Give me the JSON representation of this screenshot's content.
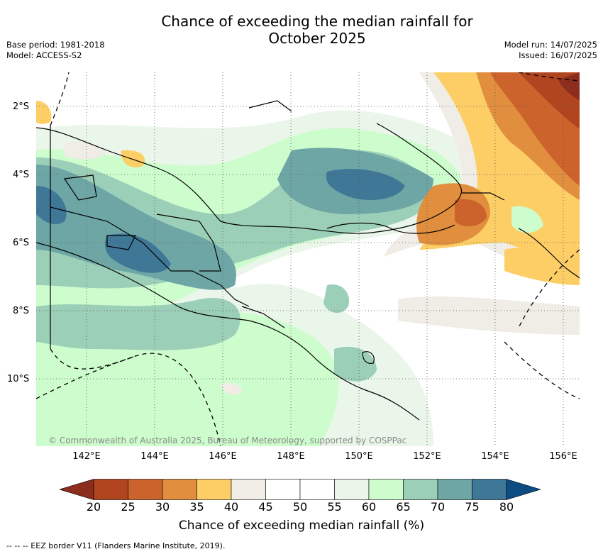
{
  "header": {
    "title": "Chance of exceeding the median rainfall for\nOctober 2025",
    "base_period": "Base period: 1981-2018",
    "model": "Model: ACCESS-S2",
    "model_run": "Model run: 14/07/2025",
    "issued": "Issued: 16/07/2025"
  },
  "map": {
    "lat_labels": [
      "2°S",
      "4°S",
      "6°S",
      "8°S",
      "10°S"
    ],
    "lon_labels": [
      "142°E",
      "144°E",
      "146°E",
      "148°E",
      "150°E",
      "152°E",
      "154°E",
      "156°E"
    ],
    "copyright": "© Commonwealth of Australia 2025, Bureau of Meteorology, supported by COSPPac"
  },
  "colorbar": {
    "ticks": [
      "20",
      "25",
      "30",
      "35",
      "40",
      "45",
      "50",
      "55",
      "60",
      "65",
      "70",
      "75",
      "80"
    ],
    "colors": [
      "#8c2d1e",
      "#b0451f",
      "#cc622c",
      "#e18f3e",
      "#fdce66",
      "#f0ede6",
      "#ffffff",
      "#ffffff",
      "#eaf6e9",
      "#cdfccd",
      "#9ccfb7",
      "#6ea6a6",
      "#3f7797",
      "#0d4c82"
    ],
    "label": "Chance of exceeding median rainfall (%)"
  },
  "legend": {
    "eez_text": "-- -- -- EEZ border V11 (Flanders Marine Institute, 2019)."
  }
}
